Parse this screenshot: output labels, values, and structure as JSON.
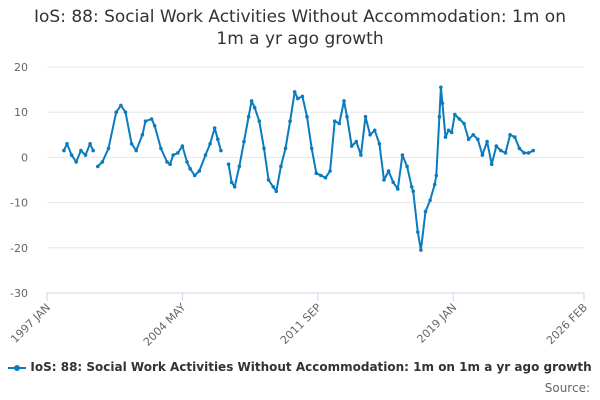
{
  "title": "IoS: 88: Social Work Activities Without Accommodation: 1m on 1m a yr ago growth",
  "source_label": "Source:",
  "colors": {
    "series": "#0a7bbd",
    "grid": "#e6e6e6",
    "axis": "#ccd6eb"
  },
  "chart_data": {
    "type": "line",
    "title": "IoS: 88: Social Work Activities Without Accommodation: 1m on 1m a yr ago growth",
    "xlabel": "",
    "ylabel": "",
    "ylim": [
      -30,
      20
    ],
    "yticks": [
      20,
      10,
      0,
      -10,
      -20,
      -30
    ],
    "xlim": [
      "1997-01",
      "2026-02"
    ],
    "xticks": [
      {
        "date": "1997-01",
        "label": "1997 JAN"
      },
      {
        "date": "2004-05",
        "label": "2004 MAY"
      },
      {
        "date": "2011-09",
        "label": "2011 SEP"
      },
      {
        "date": "2019-01",
        "label": "2019 JAN"
      },
      {
        "date": "2026-02",
        "label": "2026 FEB"
      }
    ],
    "grid": true,
    "legend_position": "bottom",
    "series": [
      {
        "name": "IoS: 88: Social Work Activities Without Accommodation: 1m on 1m a yr ago growth",
        "points": [
          [
            "1997-12",
            1.5
          ],
          [
            "1998-02",
            3.0
          ],
          [
            "1998-05",
            0.5
          ],
          [
            "1998-08",
            -1.0
          ],
          [
            "1998-11",
            1.5
          ],
          [
            "1999-02",
            0.5
          ],
          [
            "1999-05",
            3.0
          ],
          [
            "1999-07",
            1.5
          ],
          [
            "1999-08",
            null
          ],
          [
            "1999-10",
            -2.0
          ],
          [
            "2000-01",
            -1.0
          ],
          [
            "2000-05",
            2.0
          ],
          [
            "2000-10",
            10.0
          ],
          [
            "2001-01",
            11.5
          ],
          [
            "2001-04",
            10.0
          ],
          [
            "2001-08",
            3.0
          ],
          [
            "2001-11",
            1.5
          ],
          [
            "2002-03",
            5.0
          ],
          [
            "2002-05",
            8.0
          ],
          [
            "2002-09",
            8.5
          ],
          [
            "2002-11",
            7.0
          ],
          [
            "2003-03",
            2.0
          ],
          [
            "2003-07",
            -1.0
          ],
          [
            "2003-09",
            -1.5
          ],
          [
            "2003-11",
            0.5
          ],
          [
            "2004-02",
            1.0
          ],
          [
            "2004-05",
            2.5
          ],
          [
            "2004-08",
            -1.0
          ],
          [
            "2004-10",
            -2.5
          ],
          [
            "2005-01",
            -4.0
          ],
          [
            "2005-04",
            -3.0
          ],
          [
            "2005-08",
            0.5
          ],
          [
            "2005-11",
            3.0
          ],
          [
            "2006-02",
            6.5
          ],
          [
            "2006-04",
            4.0
          ],
          [
            "2006-06",
            1.5
          ],
          [
            "2006-08",
            null
          ],
          [
            "2006-11",
            -1.5
          ],
          [
            "2007-01",
            -5.5
          ],
          [
            "2007-03",
            -6.5
          ],
          [
            "2007-06",
            -2.0
          ],
          [
            "2007-09",
            3.5
          ],
          [
            "2007-12",
            9.0
          ],
          [
            "2008-02",
            12.5
          ],
          [
            "2008-04",
            11.0
          ],
          [
            "2008-07",
            8.0
          ],
          [
            "2008-10",
            2.0
          ],
          [
            "2009-01",
            -5.0
          ],
          [
            "2009-04",
            -6.5
          ],
          [
            "2009-06",
            -7.5
          ],
          [
            "2009-09",
            -2.0
          ],
          [
            "2009-12",
            2.0
          ],
          [
            "2010-03",
            8.0
          ],
          [
            "2010-06",
            14.5
          ],
          [
            "2010-08",
            13.0
          ],
          [
            "2010-11",
            13.5
          ],
          [
            "2011-02",
            9.0
          ],
          [
            "2011-05",
            2.0
          ],
          [
            "2011-08",
            -3.5
          ],
          [
            "2011-11",
            -4.0
          ],
          [
            "2012-02",
            -4.5
          ],
          [
            "2012-05",
            -3.0
          ],
          [
            "2012-08",
            8.0
          ],
          [
            "2012-11",
            7.5
          ],
          [
            "2013-02",
            12.5
          ],
          [
            "2013-04",
            9.0
          ],
          [
            "2013-07",
            2.5
          ],
          [
            "2013-10",
            3.5
          ],
          [
            "2014-01",
            0.5
          ],
          [
            "2014-04",
            9.0
          ],
          [
            "2014-07",
            5.0
          ],
          [
            "2014-10",
            6.0
          ],
          [
            "2015-01",
            3.0
          ],
          [
            "2015-04",
            -5.0
          ],
          [
            "2015-07",
            -3.0
          ],
          [
            "2015-10",
            -5.5
          ],
          [
            "2016-01",
            -7.0
          ],
          [
            "2016-04",
            0.5
          ],
          [
            "2016-07",
            -2.0
          ],
          [
            "2016-10",
            -6.5
          ],
          [
            "2016-11",
            -7.5
          ],
          [
            "2017-02",
            -16.5
          ],
          [
            "2017-04",
            -20.5
          ],
          [
            "2017-07",
            -12.0
          ],
          [
            "2017-10",
            -9.5
          ],
          [
            "2018-01",
            -6.0
          ],
          [
            "2018-02",
            -4.0
          ],
          [
            "2018-04",
            9.0
          ],
          [
            "2018-05",
            15.5
          ],
          [
            "2018-06",
            12.0
          ],
          [
            "2018-08",
            4.5
          ],
          [
            "2018-10",
            6.0
          ],
          [
            "2018-12",
            5.5
          ],
          [
            "2019-02",
            9.5
          ],
          [
            "2019-05",
            8.5
          ],
          [
            "2019-08",
            7.5
          ],
          [
            "2019-11",
            4.0
          ],
          [
            "2020-02",
            5.0
          ],
          [
            "2020-05",
            4.0
          ],
          [
            "2020-08",
            0.5
          ],
          [
            "2020-11",
            3.5
          ],
          [
            "2021-02",
            -1.5
          ],
          [
            "2021-05",
            2.5
          ],
          [
            "2021-08",
            1.5
          ],
          [
            "2021-11",
            1.0
          ],
          [
            "2022-02",
            5.0
          ],
          [
            "2022-05",
            4.5
          ],
          [
            "2022-08",
            2.0
          ],
          [
            "2022-11",
            1.0
          ],
          [
            "2023-02",
            1.0
          ],
          [
            "2023-05",
            1.5
          ]
        ]
      }
    ]
  }
}
